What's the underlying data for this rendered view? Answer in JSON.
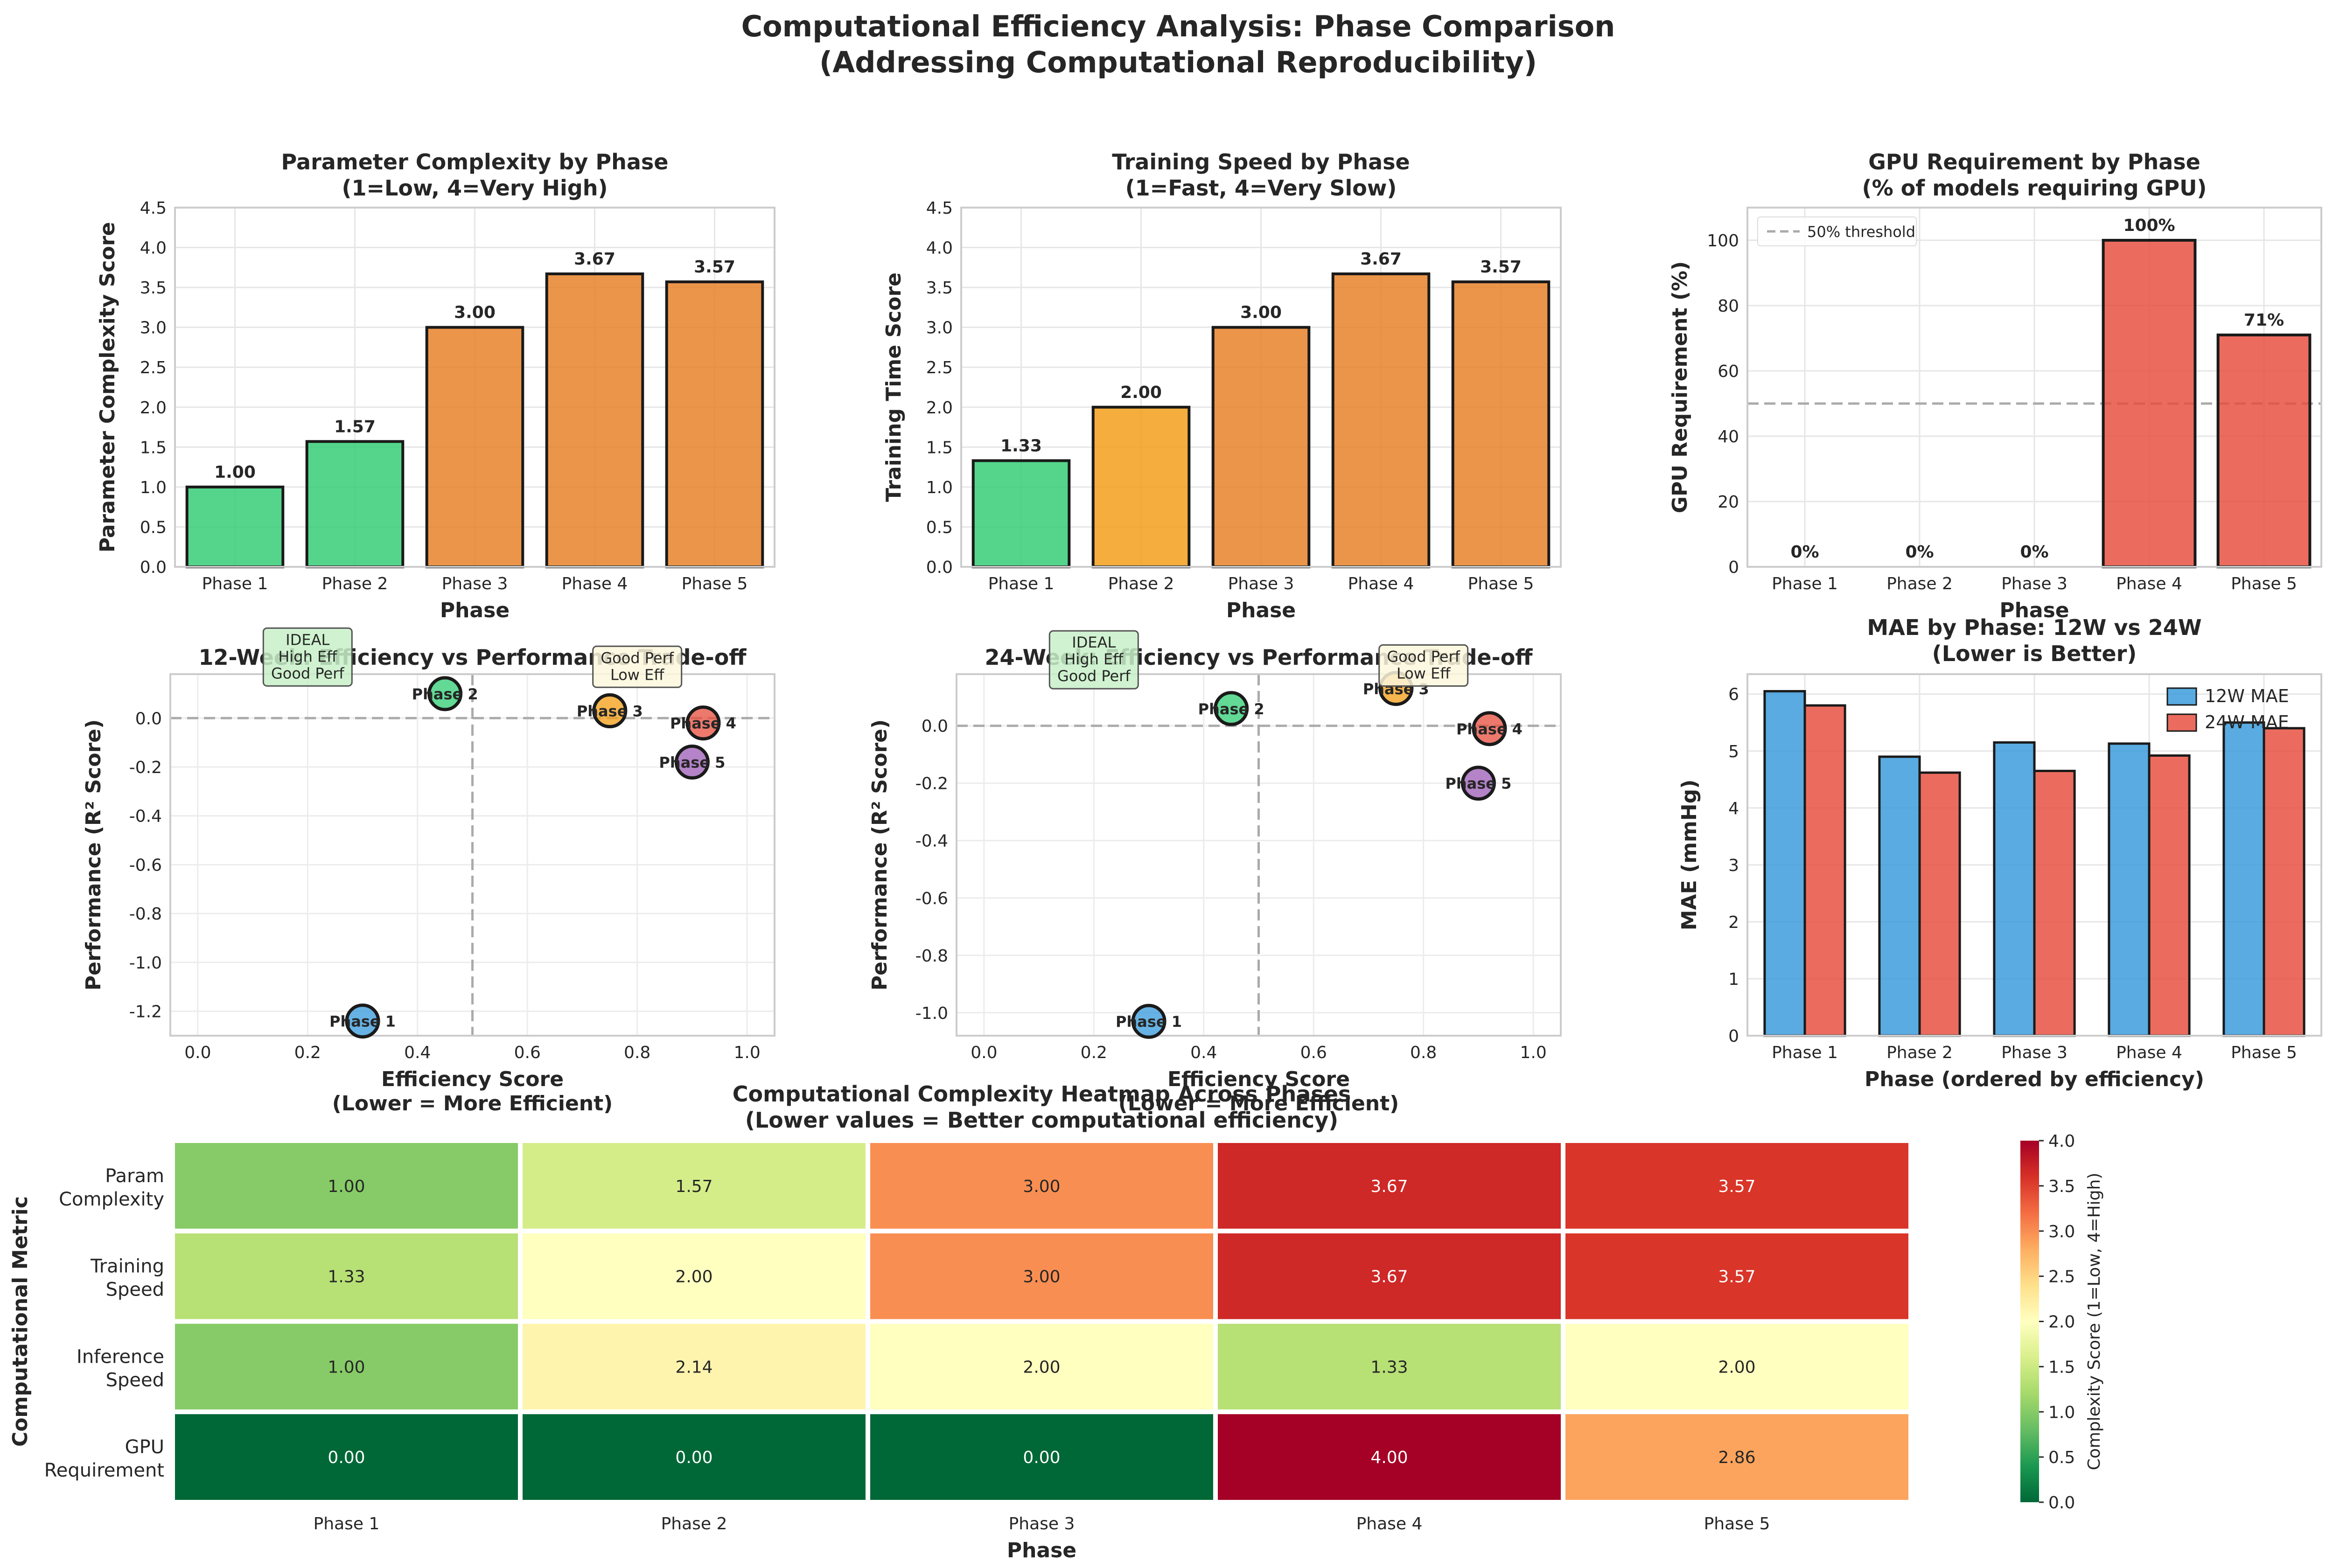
{
  "figure": {
    "title_line1": "Computational Efficiency Analysis: Phase Comparison",
    "title_line2": "(Addressing Computational Reproducibility)"
  },
  "colors": {
    "green": "#2ecc71",
    "orange": "#e67e22",
    "amber": "#f39c12",
    "red": "#e74c3c",
    "blue": "#3498db",
    "purple": "#9b59b6",
    "bar_edge": "#1a1a1a"
  },
  "chart_data": [
    {
      "id": "param",
      "type": "bar",
      "title": "Parameter Complexity by Phase",
      "subtitle": "(1=Low, 4=Very High)",
      "xlabel": "Phase",
      "ylabel": "Parameter Complexity Score",
      "categories": [
        "Phase 1",
        "Phase 2",
        "Phase 3",
        "Phase 4",
        "Phase 5"
      ],
      "values": [
        1.0,
        1.57,
        3.0,
        3.67,
        3.57
      ],
      "value_labels": [
        "1.00",
        "1.57",
        "3.00",
        "3.67",
        "3.57"
      ],
      "bar_colors": [
        "green",
        "green",
        "orange",
        "orange",
        "orange"
      ],
      "ylim": [
        0,
        4.5
      ],
      "yticks": [
        "0.0",
        "0.5",
        "1.0",
        "1.5",
        "2.0",
        "2.5",
        "3.0",
        "3.5",
        "4.0",
        "4.5"
      ],
      "grid": true
    },
    {
      "id": "train",
      "type": "bar",
      "title": "Training Speed by Phase",
      "subtitle": "(1=Fast, 4=Very Slow)",
      "xlabel": "Phase",
      "ylabel": "Training Time Score",
      "categories": [
        "Phase 1",
        "Phase 2",
        "Phase 3",
        "Phase 4",
        "Phase 5"
      ],
      "values": [
        1.33,
        2.0,
        3.0,
        3.67,
        3.57
      ],
      "value_labels": [
        "1.33",
        "2.00",
        "3.00",
        "3.67",
        "3.57"
      ],
      "bar_colors": [
        "green",
        "amber",
        "orange",
        "orange",
        "orange"
      ],
      "ylim": [
        0,
        4.5
      ],
      "yticks": [
        "0.0",
        "0.5",
        "1.0",
        "1.5",
        "2.0",
        "2.5",
        "3.0",
        "3.5",
        "4.0",
        "4.5"
      ],
      "grid": true
    },
    {
      "id": "gpu",
      "type": "bar",
      "title": "GPU Requirement by Phase",
      "subtitle": "(% of models requiring GPU)",
      "xlabel": "Phase",
      "ylabel": "GPU Requirement (%)",
      "categories": [
        "Phase 1",
        "Phase 2",
        "Phase 3",
        "Phase 4",
        "Phase 5"
      ],
      "values": [
        0,
        0,
        0,
        100,
        71
      ],
      "value_labels": [
        "0%",
        "0%",
        "0%",
        "100%",
        "71%"
      ],
      "bar_colors": [
        "red",
        "red",
        "red",
        "red",
        "red"
      ],
      "ylim": [
        0,
        110
      ],
      "yticks": [
        "0",
        "20",
        "40",
        "60",
        "80",
        "100"
      ],
      "threshold": 50,
      "legend": [
        "50% threshold"
      ],
      "legend_position": "upper-left",
      "grid": true
    },
    {
      "id": "scatter12",
      "type": "scatter",
      "title": "12-Week: Efficiency vs Performance Trade-off",
      "xlabel": "Efficiency Score",
      "xlabel2": "(Lower = More Efficient)",
      "ylabel": "Performance (R² Score)",
      "xlim": [
        -0.05,
        1.05
      ],
      "ylim": [
        -1.3,
        0.18
      ],
      "xticks": [
        "0.0",
        "0.2",
        "0.4",
        "0.6",
        "0.8",
        "1.0"
      ],
      "yticks": [
        "-1.2",
        "-1.0",
        "-0.8",
        "-0.6",
        "-0.4",
        "-0.2",
        "0.0"
      ],
      "ref_x": 0.5,
      "ref_y": 0.0,
      "points": [
        {
          "label": "Phase 1",
          "x": 0.3,
          "y": -1.24,
          "color": "blue"
        },
        {
          "label": "Phase 2",
          "x": 0.45,
          "y": 0.1,
          "color": "green"
        },
        {
          "label": "Phase 3",
          "x": 0.75,
          "y": 0.03,
          "color": "amber"
        },
        {
          "label": "Phase 4",
          "x": 0.92,
          "y": -0.02,
          "color": "red"
        },
        {
          "label": "Phase 5",
          "x": 0.9,
          "y": -0.18,
          "color": "purple"
        }
      ],
      "annotations": [
        {
          "lines": [
            "IDEAL",
            "High Eff",
            "Good Perf"
          ],
          "x": 0.2,
          "y": 0.25,
          "kind": "ideal"
        },
        {
          "lines": [
            "Good Perf",
            "Low Eff"
          ],
          "x": 0.8,
          "y": 0.21,
          "kind": "tradeoff"
        }
      ]
    },
    {
      "id": "scatter24",
      "type": "scatter",
      "title": "24-Week: Efficiency vs Performance Trade-off",
      "xlabel": "Efficiency Score",
      "xlabel2": "(Lower = More Efficient)",
      "ylabel": "Performance (R² Score)",
      "xlim": [
        -0.05,
        1.05
      ],
      "ylim": [
        -1.08,
        0.18
      ],
      "xticks": [
        "0.0",
        "0.2",
        "0.4",
        "0.6",
        "0.8",
        "1.0"
      ],
      "yticks": [
        "-1.0",
        "-0.8",
        "-0.6",
        "-0.4",
        "-0.2",
        "0.0"
      ],
      "ref_x": 0.5,
      "ref_y": 0.0,
      "points": [
        {
          "label": "Phase 1",
          "x": 0.3,
          "y": -1.03,
          "color": "blue"
        },
        {
          "label": "Phase 2",
          "x": 0.45,
          "y": 0.06,
          "color": "green"
        },
        {
          "label": "Phase 3",
          "x": 0.75,
          "y": 0.13,
          "color": "amber"
        },
        {
          "label": "Phase 4",
          "x": 0.92,
          "y": -0.01,
          "color": "red"
        },
        {
          "label": "Phase 5",
          "x": 0.9,
          "y": -0.2,
          "color": "purple"
        }
      ],
      "annotations": [
        {
          "lines": [
            "IDEAL",
            "High Eff",
            "Good Perf"
          ],
          "x": 0.2,
          "y": 0.23,
          "kind": "ideal"
        },
        {
          "lines": [
            "Good Perf",
            "Low Eff"
          ],
          "x": 0.8,
          "y": 0.21,
          "kind": "tradeoff"
        }
      ]
    },
    {
      "id": "mae",
      "type": "bar",
      "title": "MAE by Phase: 12W vs 24W",
      "subtitle": "(Lower is Better)",
      "xlabel": "Phase (ordered by efficiency)",
      "ylabel": "MAE (mmHg)",
      "categories": [
        "Phase 1",
        "Phase 2",
        "Phase 3",
        "Phase 4",
        "Phase 5"
      ],
      "series": [
        {
          "name": "12W MAE",
          "values": [
            6.05,
            4.9,
            5.15,
            5.13,
            5.5
          ],
          "color": "blue"
        },
        {
          "name": "24W MAE",
          "values": [
            5.8,
            4.62,
            4.65,
            4.92,
            5.4
          ],
          "color": "red"
        }
      ],
      "ylim": [
        0,
        6.35
      ],
      "yticks": [
        "0",
        "1",
        "2",
        "3",
        "4",
        "5",
        "6"
      ],
      "legend_position": "upper-right",
      "grid": true
    },
    {
      "id": "heatmap",
      "type": "heatmap",
      "title": "Computational Complexity Heatmap Across Phases",
      "subtitle": "(Lower values = Better computational efficiency)",
      "xlabel": "Phase",
      "ylabel": "Computational Metric",
      "columns": [
        "Phase 1",
        "Phase 2",
        "Phase 3",
        "Phase 4",
        "Phase 5"
      ],
      "rows": [
        {
          "label": [
            "Param",
            "Complexity"
          ],
          "values": [
            1.0,
            1.57,
            3.0,
            3.67,
            3.57
          ],
          "text": [
            "1.00",
            "1.57",
            "3.00",
            "3.67",
            "3.57"
          ]
        },
        {
          "label": [
            "Training",
            "Speed"
          ],
          "values": [
            1.33,
            2.0,
            3.0,
            3.67,
            3.57
          ],
          "text": [
            "1.33",
            "2.00",
            "3.00",
            "3.67",
            "3.57"
          ]
        },
        {
          "label": [
            "Inference",
            "Speed"
          ],
          "values": [
            1.0,
            2.14,
            2.0,
            1.33,
            2.0
          ],
          "text": [
            "1.00",
            "2.14",
            "2.00",
            "1.33",
            "2.00"
          ]
        },
        {
          "label": [
            "GPU",
            "Requirement"
          ],
          "values": [
            0,
            0,
            0,
            4.0,
            2.86
          ],
          "text": [
            "0.00",
            "0.00",
            "0.00",
            "4.00",
            "2.86"
          ]
        }
      ],
      "vmin": 0,
      "vmax": 4,
      "colorbar_label": "Complexity Score (1=Low, 4=High)",
      "colorbar_ticks": [
        "0.0",
        "0.5",
        "1.0",
        "1.5",
        "2.0",
        "2.5",
        "3.0",
        "3.5",
        "4.0"
      ],
      "colormap": [
        "#006837",
        "#1a9850",
        "#66bd63",
        "#a6d96a",
        "#d9ef8b",
        "#ffffbf",
        "#fee08b",
        "#fdae61",
        "#f46d43",
        "#d73027",
        "#a50026"
      ]
    }
  ]
}
